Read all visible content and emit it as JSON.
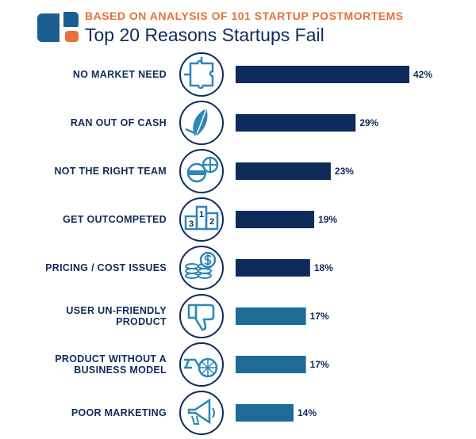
{
  "header": {
    "subtitle": "BASED ON ANALYSIS OF 101 STARTUP POSTMORTEMS",
    "title": "Top 20 Reasons Startups Fail"
  },
  "colors": {
    "accent_orange": "#e8703a",
    "navy": "#0f2b5b",
    "teal": "#1e6b96",
    "icon_teal": "#2e86b5",
    "logo_blue": "#1c5d91"
  },
  "chart_data": {
    "type": "bar",
    "orientation": "horizontal",
    "title": "Top 20 Reasons Startups Fail",
    "subtitle": "BASED ON ANALYSIS OF 101 STARTUP POSTMORTEMS",
    "categories": [
      "NO MARKET NEED",
      "RAN OUT OF CASH",
      "NOT THE RIGHT TEAM",
      "GET OUTCOMPETED",
      "PRICING / COST ISSUES",
      "USER UN-FRIENDLY PRODUCT",
      "PRODUCT WITHOUT A BUSINESS MODEL",
      "POOR MARKETING"
    ],
    "label_lines": [
      [
        "NO MARKET NEED"
      ],
      [
        "RAN OUT OF CASH"
      ],
      [
        "NOT THE RIGHT TEAM"
      ],
      [
        "GET OUTCOMPETED"
      ],
      [
        "PRICING / COST ISSUES"
      ],
      [
        "USER UN-FRIENDLY",
        "PRODUCT"
      ],
      [
        "PRODUCT WITHOUT A",
        "BUSINESS MODEL"
      ],
      [
        "POOR MARKETING"
      ]
    ],
    "values": [
      42,
      29,
      23,
      19,
      18,
      17,
      17,
      14
    ],
    "value_labels": [
      "42%",
      "29%",
      "23%",
      "19%",
      "18%",
      "17%",
      "17%",
      "14%"
    ],
    "bar_colors": [
      "#0f2b5b",
      "#0f2b5b",
      "#0f2b5b",
      "#0f2b5b",
      "#0f2b5b",
      "#1e6b96",
      "#1e6b96",
      "#1e6b96"
    ],
    "icons": [
      "puzzle-icon",
      "cash-leaf-icon",
      "team-icon",
      "podium-icon",
      "coins-dollar-icon",
      "thumbs-down-icon",
      "bicycle-icon",
      "megaphone-icon"
    ],
    "podium_numbers": [
      "3",
      "1",
      "2"
    ],
    "xlim": [
      0,
      42
    ],
    "grid": false,
    "legend": "none"
  }
}
